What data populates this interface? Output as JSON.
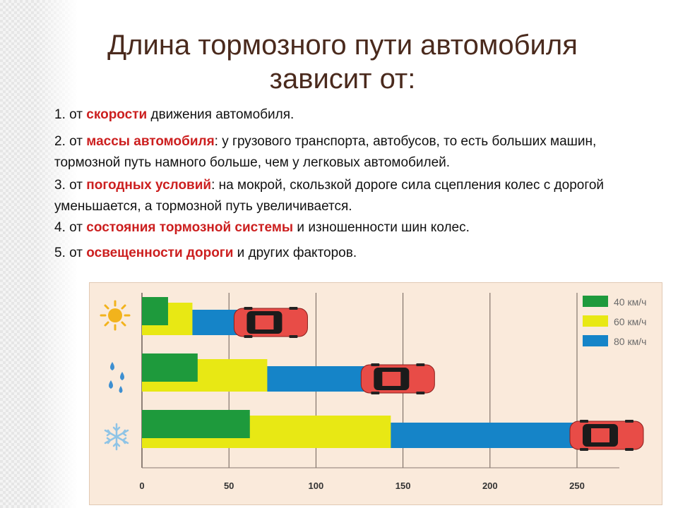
{
  "slide": {
    "title_line1": "Длина тормозного пути автомобиля",
    "title_line2": "зависит от:"
  },
  "factors": [
    {
      "prefix": " 1. от ",
      "highlight": "скорости",
      "suffix": " движения автомобиля."
    },
    {
      "prefix": "2. от ",
      "highlight": "массы автомобиля",
      "suffix": ": у грузового транспорта, автобусов, то есть больших машин, тормозной путь намного больше, чем у легковых автомобилей."
    },
    {
      "prefix": "3. от ",
      "highlight": "погодных условий",
      "suffix": ": на мокрой, скользкой дороге сила сцепления колес с дорогой уменьшается, а тормозной путь увеличивается."
    },
    {
      "prefix": "4. от ",
      "highlight": "состояния тормозной системы",
      "suffix": " и изношенности шин колес."
    },
    {
      "prefix": "5. от ",
      "highlight": "освещенности дороги",
      "suffix": " и других факторов."
    }
  ],
  "chart_data": {
    "type": "bar",
    "orientation": "horizontal",
    "categories": [
      "sun-icon",
      "rain-drops-icon",
      "snowflake-icon"
    ],
    "series": [
      {
        "name": "40 км/ч",
        "color": "#1e9a3c",
        "values": [
          15,
          32,
          62
        ]
      },
      {
        "name": "60 км/ч",
        "color": "#e8e814",
        "values": [
          29,
          72,
          143
        ]
      },
      {
        "name": "80 км/ч",
        "color": "#1584c8",
        "values": [
          57,
          130,
          250
        ]
      }
    ],
    "x_ticks": [
      "0",
      "50",
      "100",
      "150",
      "200",
      "250"
    ],
    "xlim": [
      0,
      250
    ],
    "grid": true,
    "legend_position": "top-right",
    "car_color": "#e84c47"
  }
}
